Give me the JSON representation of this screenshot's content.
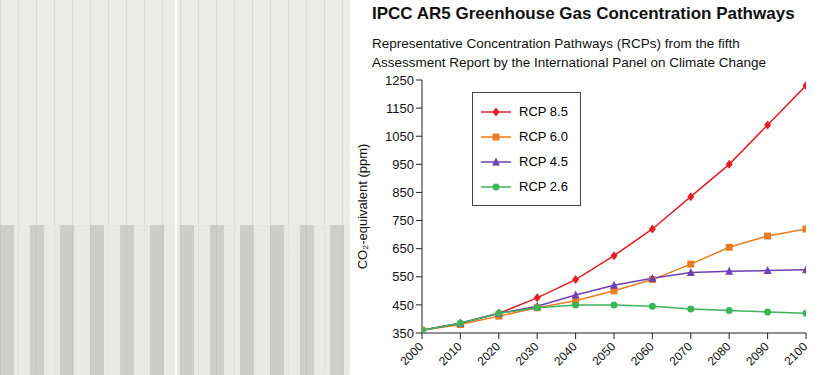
{
  "chart_data": {
    "type": "line",
    "title": "IPCC AR5 Greenhouse Gas Concentration Pathways",
    "subtitle": "Representative Concentration Pathways (RCPs) from the fifth Assessment Report by the International Panel on Climate Change",
    "y_label": "CO₂-equivalent (ppm)",
    "x": [
      2000,
      2010,
      2020,
      2030,
      2040,
      2050,
      2060,
      2070,
      2080,
      2090,
      2100
    ],
    "series": [
      {
        "name": "RCP 8.5",
        "color": "#e41e26",
        "marker": "diamond",
        "values": [
          360,
          385,
          420,
          475,
          540,
          625,
          720,
          835,
          950,
          1090,
          1230
        ]
      },
      {
        "name": "RCP 6.0",
        "color": "#e87d22",
        "marker": "square",
        "values": [
          360,
          380,
          410,
          440,
          465,
          500,
          540,
          595,
          655,
          695,
          720
        ]
      },
      {
        "name": "RCP 4.5",
        "color": "#6f3fb5",
        "marker": "triangle",
        "values": [
          360,
          385,
          420,
          445,
          485,
          520,
          545,
          565,
          570,
          572,
          575
        ]
      },
      {
        "name": "RCP 2.6",
        "color": "#3cb55a",
        "marker": "circle",
        "values": [
          360,
          385,
          420,
          440,
          450,
          450,
          445,
          435,
          430,
          425,
          420
        ]
      }
    ],
    "xlim": [
      2000,
      2100
    ],
    "xticks": [
      2000,
      2010,
      2020,
      2030,
      2040,
      2050,
      2060,
      2070,
      2080,
      2090,
      2100
    ],
    "ylim": [
      350,
      1250
    ],
    "yticks": [
      350,
      450,
      550,
      650,
      750,
      850,
      950,
      1050,
      1150,
      1250
    ],
    "grid": false,
    "legend": "upper left"
  }
}
